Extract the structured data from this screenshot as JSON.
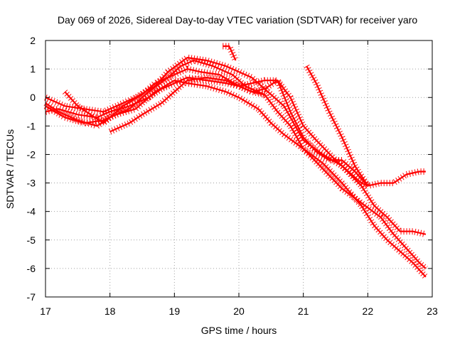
{
  "chart_data": {
    "type": "line",
    "title": "Day 069 of 2026, Sidereal Day-to-day VTEC variation (SDTVAR) for receiver yaro",
    "xlabel": "GPS time / hours",
    "ylabel": "SDTVAR / TECUs",
    "xlim": [
      17,
      23
    ],
    "ylim": [
      -7,
      2
    ],
    "xticks": [
      "17",
      "18",
      "19",
      "20",
      "21",
      "22",
      "23"
    ],
    "yticks": [
      "2",
      "1",
      "0",
      "-1",
      "-2",
      "-3",
      "-4",
      "-5",
      "-6",
      "-7"
    ],
    "grid": true,
    "color": "#ff0000",
    "marker": "plus",
    "series": [
      {
        "name": "series-1",
        "x": [
          17.0,
          17.2,
          17.5,
          17.8,
          18.0,
          18.3,
          18.6,
          18.8,
          19.0,
          19.2,
          19.5,
          19.8,
          20.0,
          20.2,
          20.4,
          20.6,
          20.8,
          21.0,
          21.2,
          21.5,
          21.7,
          21.9,
          22.0,
          22.2,
          22.4,
          22.6,
          22.8,
          22.9
        ],
        "y": [
          -0.5,
          -0.4,
          -0.6,
          -0.7,
          -0.5,
          -0.3,
          0.0,
          0.3,
          0.5,
          0.7,
          0.6,
          0.5,
          0.4,
          0.5,
          0.6,
          0.6,
          0.0,
          -1.0,
          -1.5,
          -2.2,
          -2.6,
          -3.0,
          -3.1,
          -3.0,
          -3.0,
          -2.7,
          -2.6,
          -2.6
        ]
      },
      {
        "name": "series-2",
        "x": [
          17.0,
          17.3,
          17.6,
          17.9,
          18.1,
          18.4,
          18.7,
          19.0,
          19.2,
          19.5,
          19.8,
          20.0,
          20.3,
          20.5,
          20.7,
          21.0,
          21.3,
          21.6,
          21.9,
          22.2,
          22.4,
          22.6,
          22.8,
          22.9
        ],
        "y": [
          -0.3,
          -0.7,
          -0.9,
          -0.8,
          -0.6,
          -0.4,
          0.2,
          0.6,
          0.5,
          0.4,
          0.2,
          0.0,
          -0.4,
          -0.9,
          -1.3,
          -1.8,
          -2.5,
          -3.2,
          -3.7,
          -4.2,
          -4.8,
          -5.3,
          -5.8,
          -6.0
        ]
      },
      {
        "name": "series-3",
        "x": [
          17.0,
          17.2,
          17.5,
          17.8,
          18.0,
          18.3,
          18.6,
          18.9,
          19.1,
          19.3,
          19.6,
          19.9,
          20.1,
          20.4,
          20.6,
          20.8,
          21.0,
          21.3,
          21.6,
          21.9,
          22.1,
          22.3,
          22.5,
          22.7,
          22.9
        ],
        "y": [
          -0.2,
          -0.5,
          -0.8,
          -1.0,
          -0.7,
          -0.4,
          0.2,
          0.7,
          1.1,
          1.3,
          1.1,
          0.8,
          0.4,
          0.1,
          -0.5,
          -1.0,
          -1.8,
          -2.3,
          -3.0,
          -3.8,
          -4.5,
          -5.0,
          -5.4,
          -5.8,
          -6.3
        ]
      },
      {
        "name": "series-4",
        "x": [
          17.0,
          17.3,
          17.6,
          17.9,
          18.1,
          18.4,
          18.7,
          18.9,
          19.2,
          19.5,
          19.8,
          20.0,
          20.2,
          20.4,
          20.7,
          21.0,
          21.3,
          21.6,
          21.9,
          22.1,
          22.3,
          22.5,
          22.7,
          22.9
        ],
        "y": [
          0.0,
          -0.3,
          -0.4,
          -0.5,
          -0.3,
          0.0,
          0.4,
          0.9,
          1.4,
          1.3,
          1.1,
          0.9,
          0.7,
          0.3,
          -0.3,
          -1.5,
          -2.0,
          -2.4,
          -3.1,
          -3.8,
          -4.2,
          -4.7,
          -4.7,
          -4.8
        ]
      },
      {
        "name": "series-5",
        "x": [
          17.3,
          17.5,
          17.7,
          17.9,
          18.0,
          18.2,
          18.5,
          18.7,
          19.0,
          19.2,
          19.4,
          19.7,
          20.0,
          20.2,
          20.4,
          20.6,
          20.8,
          21.0,
          21.2,
          21.4,
          21.6,
          21.8,
          22.0
        ],
        "y": [
          0.2,
          -0.3,
          -0.6,
          -0.9,
          -0.7,
          -0.3,
          0.1,
          0.5,
          0.8,
          1.0,
          0.9,
          0.8,
          0.4,
          0.2,
          0.3,
          0.6,
          -0.5,
          -1.4,
          -1.9,
          -2.2,
          -2.2,
          -2.6,
          -3.1
        ]
      },
      {
        "name": "series-6",
        "x": [
          18.0,
          18.3,
          18.5,
          18.8,
          19.0,
          19.2,
          19.5,
          19.8,
          20.0,
          20.2,
          20.4
        ],
        "y": [
          -1.2,
          -0.9,
          -0.6,
          -0.2,
          0.2,
          0.6,
          0.7,
          0.6,
          0.4,
          0.2,
          0.1
        ]
      },
      {
        "name": "series-7",
        "x": [
          19.75,
          19.85,
          19.95
        ],
        "y": [
          1.8,
          1.8,
          1.3
        ]
      },
      {
        "name": "series-8",
        "x": [
          21.05,
          21.2,
          21.4,
          21.6,
          21.8,
          22.0
        ],
        "y": [
          1.1,
          0.5,
          -0.5,
          -1.4,
          -2.4,
          -3.1
        ]
      }
    ]
  }
}
